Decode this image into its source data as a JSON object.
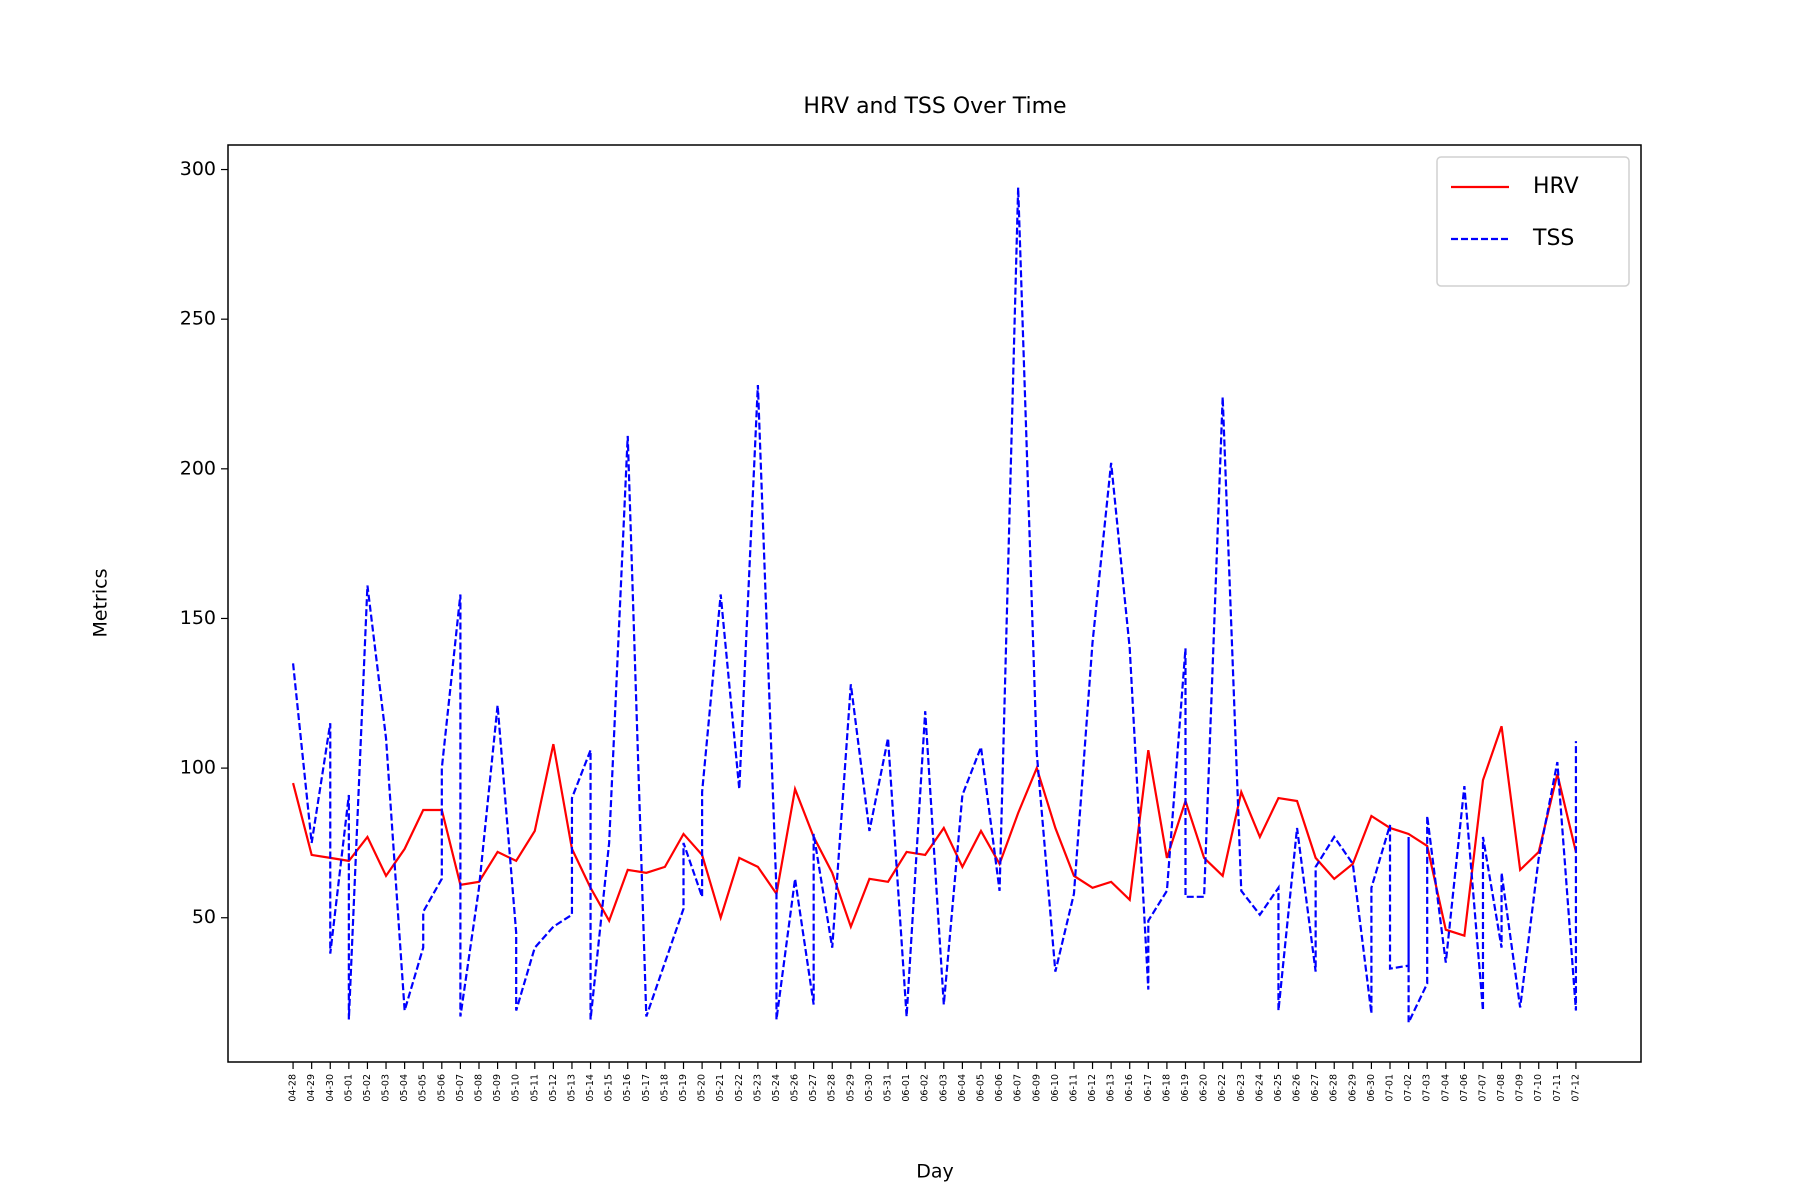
{
  "chart_data": {
    "type": "line",
    "title": "HRV and TSS Over Time",
    "x_label": "Day",
    "y_label": "Metrics",
    "categories": [
      "04-28",
      "04-29",
      "04-30",
      "05-01",
      "05-02",
      "05-03",
      "05-04",
      "05-05",
      "05-06",
      "05-07",
      "05-08",
      "05-09",
      "05-10",
      "05-11",
      "05-12",
      "05-13",
      "05-14",
      "05-15",
      "05-16",
      "05-17",
      "05-18",
      "05-19",
      "05-20",
      "05-21",
      "05-22",
      "05-23",
      "05-24",
      "05-26",
      "05-27",
      "05-28",
      "05-29",
      "05-30",
      "05-31",
      "06-01",
      "06-02",
      "06-03",
      "06-04",
      "06-05",
      "06-06",
      "06-07",
      "06-09",
      "06-10",
      "06-11",
      "06-12",
      "06-13",
      "06-16",
      "06-17",
      "06-18",
      "06-19",
      "06-20",
      "06-22",
      "06-23",
      "06-24",
      "06-25",
      "06-26",
      "06-27",
      "06-28",
      "06-29",
      "06-30",
      "07-01",
      "07-02",
      "07-03",
      "07-04",
      "07-06",
      "07-07",
      "07-08",
      "07-09",
      "07-10",
      "07-11",
      "07-12"
    ],
    "series": [
      {
        "name": "HRV",
        "color": "#ff0000",
        "dash": "solid",
        "values": [
          95,
          71,
          70,
          69,
          77,
          64,
          73,
          86,
          86,
          61,
          62,
          72,
          69,
          79,
          108,
          73,
          60,
          49,
          66,
          65,
          67,
          78,
          71,
          50,
          70,
          67,
          58,
          93,
          77,
          65,
          47,
          63,
          62,
          72,
          71,
          80,
          67,
          79,
          68,
          85,
          100,
          80,
          64,
          60,
          62,
          56,
          106,
          70,
          89,
          70,
          64,
          92,
          77,
          90,
          89,
          70,
          63,
          68,
          84,
          80,
          78,
          74,
          46,
          44,
          96,
          114,
          66,
          72,
          98,
          72
        ]
      },
      {
        "name": "TSS",
        "color": "#0000ff",
        "dash": "dashed",
        "x": [
          "04-28",
          "04-29",
          "04-30",
          "04-30",
          "05-01",
          "05-01",
          "05-02",
          "05-03",
          "05-04",
          "05-05",
          "05-05",
          "05-06",
          "05-06",
          "05-07",
          "05-07",
          "05-08",
          "05-09",
          "05-10",
          "05-10",
          "05-11",
          "05-12",
          "05-13",
          "05-13",
          "05-14",
          "05-14",
          "05-15",
          "05-16",
          "05-17",
          "05-18",
          "05-19",
          "05-19",
          "05-20",
          "05-20",
          "05-21",
          "05-22",
          "05-23",
          "05-24",
          "05-24",
          "05-26",
          "05-27",
          "05-27",
          "05-28",
          "05-29",
          "05-30",
          "05-31",
          "06-01",
          "06-02",
          "06-03",
          "06-04",
          "06-05",
          "06-06",
          "06-07",
          "06-09",
          "06-10",
          "06-11",
          "06-12",
          "06-13",
          "06-16",
          "06-17",
          "06-17",
          "06-18",
          "06-19",
          "06-19",
          "06-20",
          "06-22",
          "06-23",
          "06-24",
          "06-25",
          "06-25",
          "06-26",
          "06-27",
          "06-27",
          "06-28",
          "06-29",
          "06-30",
          "06-30",
          "07-01",
          "07-01",
          "07-02",
          "07-02",
          "07-02",
          "07-03",
          "07-03",
          "07-04",
          "07-06",
          "07-07",
          "07-07",
          "07-08",
          "07-08",
          "07-09",
          "07-10",
          "07-11",
          "07-12",
          "07-12"
        ],
        "values": [
          135,
          75,
          115,
          38,
          91,
          16,
          161,
          110,
          19,
          40,
          52,
          63,
          100,
          158,
          17,
          60,
          121,
          45,
          19,
          40,
          47,
          51,
          90,
          106,
          16,
          75,
          211,
          17,
          35,
          53,
          75,
          57,
          92,
          158,
          93,
          228,
          59,
          16,
          63,
          21,
          78,
          40,
          128,
          79,
          110,
          17,
          119,
          21,
          91,
          107,
          59,
          294,
          105,
          32,
          58,
          142,
          202,
          140,
          26,
          49,
          59,
          140,
          57,
          57,
          224,
          59,
          51,
          60,
          19,
          80,
          32,
          67,
          77,
          68,
          18,
          60,
          81,
          33,
          34,
          77,
          15,
          28,
          84,
          35,
          94,
          19,
          77,
          40,
          65,
          20,
          70,
          102,
          19,
          109
        ]
      }
    ],
    "ylim": [
      1.8,
      308.2
    ],
    "yticks": [
      50,
      100,
      150,
      200,
      250,
      300
    ],
    "grid": false,
    "legend": "upper right"
  }
}
